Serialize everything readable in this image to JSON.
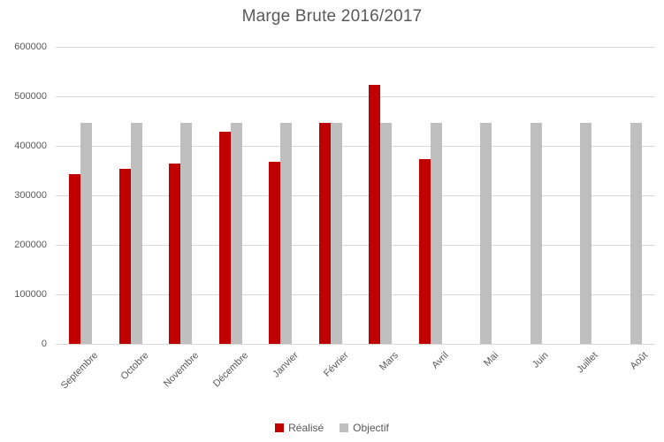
{
  "chart_data": {
    "type": "bar",
    "title": "Marge Brute 2016/2017",
    "categories": [
      "Septembre",
      "Octobre",
      "Novembre",
      "Décembre",
      "Janvier",
      "Février",
      "Mars",
      "Avril",
      "Mai",
      "Juin",
      "Juillet",
      "Août"
    ],
    "series": [
      {
        "name": "Réalisé",
        "color": "#C00000",
        "values": [
          342000,
          354000,
          364000,
          428000,
          367000,
          447000,
          524000,
          373000,
          null,
          null,
          null,
          null
        ]
      },
      {
        "name": "Objectif",
        "color": "#BFBFBF",
        "values": [
          447000,
          447000,
          447000,
          447000,
          447000,
          447000,
          447000,
          447000,
          447000,
          447000,
          447000,
          447000
        ]
      }
    ],
    "ylim": [
      0,
      600000
    ],
    "yticks": [
      0,
      100000,
      200000,
      300000,
      400000,
      500000,
      600000
    ],
    "ytick_labels": [
      "0",
      "100000",
      "200000",
      "300000",
      "400000",
      "500000",
      "600000"
    ],
    "grid": true,
    "legend_position": "bottom",
    "colors": {
      "title_text": "#595959",
      "axis_text": "#595959",
      "gridline": "#D9D9D9",
      "background": "#FFFFFF"
    }
  }
}
